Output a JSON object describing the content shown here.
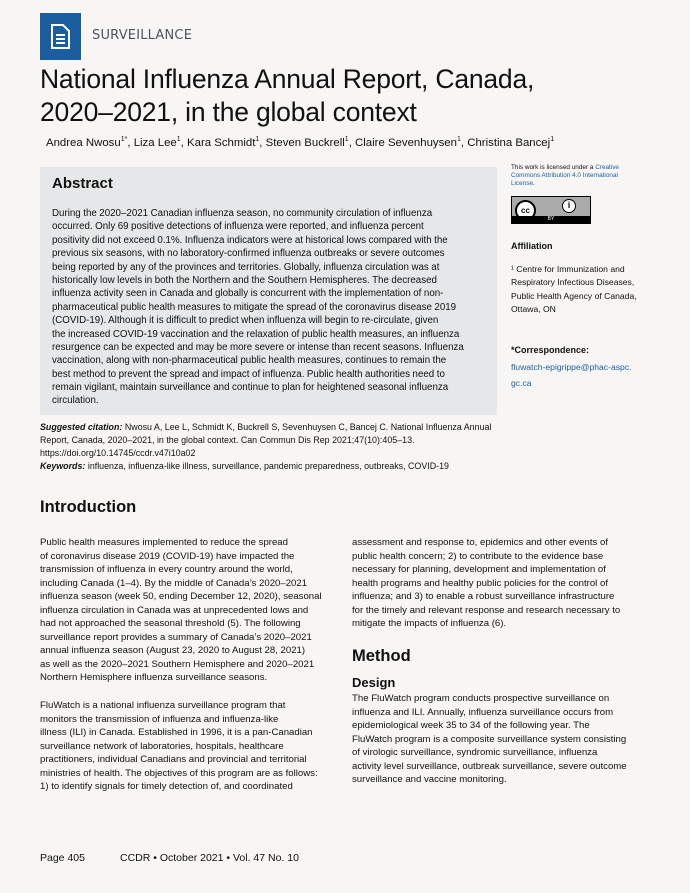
{
  "header": {
    "section": "SURVEILLANCE",
    "icon": "document-icon",
    "brand_color": "#1b5e9f"
  },
  "title": {
    "lines": [
      "National Influenza Annual Report, Canada,",
      "2020–2021, in the global context"
    ]
  },
  "authors": [
    {
      "name": "Andrea Nwosu",
      "sup": "1*"
    },
    {
      "name": "Liza Lee",
      "sup": "1"
    },
    {
      "name": "Kara Schmidt",
      "sup": "1"
    },
    {
      "name": "Steven Buckrell",
      "sup": "1"
    },
    {
      "name": "Claire Sevenhuysen",
      "sup": "1"
    },
    {
      "name": "Christina Bancej",
      "sup": "1"
    }
  ],
  "abstract": {
    "heading": "Abstract",
    "lines": [
      "During the 2020–2021 Canadian influenza season, no community circulation of influenza",
      "occurred. Only 69 positive detections of influenza were reported, and influenza percent",
      "positivity did not exceed 0.1%. Influenza indicators were at historical lows compared with the",
      "previous six seasons, with no laboratory-confirmed influenza outbreaks or severe outcomes",
      "being reported by any of the provinces and territories. Globally, influenza circulation was at",
      "historically low levels in both the Northern and the Southern Hemispheres. The decreased",
      "influenza activity seen in Canada and globally is concurrent with the implementation of non-",
      "pharmaceutical public health measures to mitigate the spread of the coronavirus disease 2019",
      "(COVID-19). Although it is difficult to predict when influenza will begin to re-circulate, given",
      "the increased COVID-19 vaccination and the relaxation of public health measures, an influenza",
      "resurgence can be expected and may be more severe or intense than recent seasons. Influenza",
      "vaccination, along with non-pharmaceutical public health measures, continues to remain the",
      "best method to prevent the spread and impact of influenza. Public health authorities need to",
      "remain vigilant, maintain surveillance and continue to plan for heightened seasonal influenza",
      "circulation."
    ]
  },
  "citation": {
    "label": "Suggested citation:",
    "lines": [
      " Nwosu A, Lee L, Schmidt K, Buckrell S, Sevenhuysen C, Bancej C. National Influenza Annual",
      "Report, Canada, 2020–2021, in the global context. Can Commun Dis Rep 2021;47(10):405–13.",
      "https://doi.org/10.14745/ccdr.v47i10a02"
    ],
    "keywords_label": "Keywords:",
    "keywords": " influenza, influenza-like illness, surveillance, pandemic preparedness, outbreaks, COVID-19"
  },
  "sidebar": {
    "license_prefix": "This work is licensed under a ",
    "license_link": "Creative Commons Attribution 4.0 International License",
    "license_suffix": ".",
    "cc_label": "cc",
    "by_label": "BY",
    "affiliation_heading": "Affiliation",
    "affiliation_lines": [
      "¹ Centre for Immunization and",
      "Respiratory Infectious Diseases,",
      "Public Health Agency of Canada,",
      "Ottawa, ON"
    ],
    "correspondence_heading": "*Correspondence:",
    "email_lines": [
      "fluwatch-epigrippe@phac-aspc.",
      "gc.ca"
    ]
  },
  "introduction": {
    "heading": "Introduction",
    "para1": [
      "Public health measures implemented to reduce the spread",
      "of coronavirus disease 2019 (COVID-19) have impacted the",
      "transmission of influenza in every country around the world,",
      "including Canada (1–4). By the middle of Canada’s 2020–2021",
      "influenza season (week 50, ending December 12, 2020), seasonal",
      "influenza circulation in Canada was at unprecedented lows and",
      "had not approached the seasonal threshold (5). The following",
      "surveillance report provides a summary of Canada’s 2020–2021",
      "annual influenza season (August 23, 2020 to August 28, 2021)",
      "as well as the 2020–2021 Southern Hemisphere and 2020–2021",
      "Northern Hemisphere influenza surveillance seasons."
    ],
    "para2": [
      "FluWatch is a national influenza surveillance program that",
      "monitors the transmission of influenza and influenza-like",
      "illness (ILI) in Canada. Established in 1996, it is a pan-Canadian",
      "surveillance network of laboratories, hospitals, healthcare",
      "practitioners, individual Canadians and provincial and territorial",
      "ministries of health. The objectives of this program are as follows:",
      "1) to identify signals for timely detection of, and coordinated"
    ],
    "para2_cont": [
      "assessment and response to, epidemics and other events of",
      "public health concern; 2) to contribute to the evidence base",
      "necessary for planning, development and implementation of",
      "health programs and healthy public policies for the control of",
      "influenza; and 3) to enable a robust surveillance infrastructure",
      "for the timely and relevant response and research necessary to",
      "mitigate the impacts of influenza (6)."
    ]
  },
  "method": {
    "heading": "Method",
    "subheading": "Design",
    "lines": [
      "The FluWatch program conducts prospective surveillance on",
      "influenza and ILI. Annually, influenza surveillance occurs from",
      "epidemiological week 35 to 34 of the following year. The",
      "FluWatch program is a composite surveillance system consisting",
      "of virologic surveillance, syndromic surveillance, influenza",
      "activity level surveillance, outbreak surveillance, severe outcome",
      "surveillance and vaccine monitoring."
    ]
  },
  "footer": {
    "page": "Page 405",
    "journal": "CCDR • October 2021 • Vol. 47 No. 10"
  }
}
